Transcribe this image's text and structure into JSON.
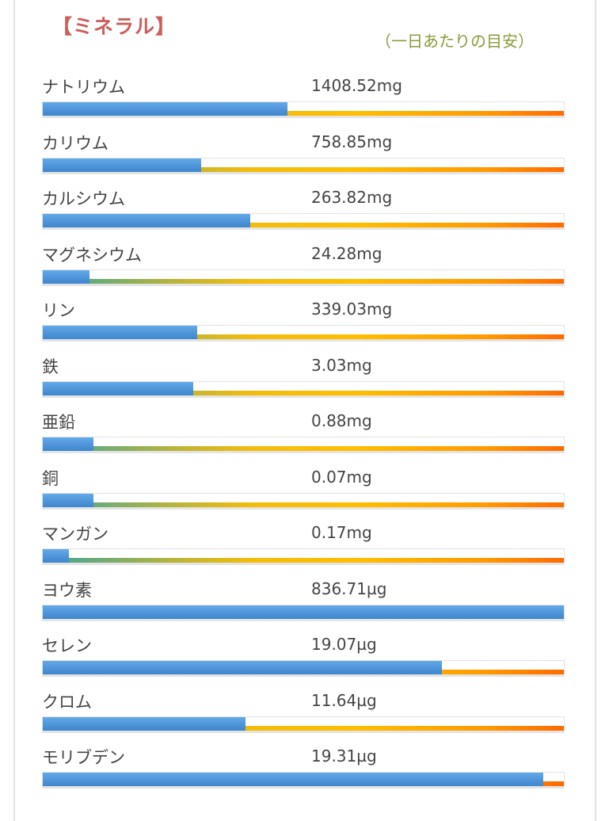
{
  "header": {
    "title": "【ミネラル】",
    "subtitle": "（一日あたりの目安）"
  },
  "colors": {
    "title": "#c9605c",
    "subtitle": "#8a9a3c",
    "bar_fill": "#4f94d8",
    "gradient_start": "#3aa39a",
    "gradient_mid": "#ffbe00",
    "gradient_end": "#ff6a00"
  },
  "rows": [
    {
      "name": "ナトリウム",
      "value": "1408.52mg",
      "percent": 46.9
    },
    {
      "name": "カリウム",
      "value": "758.85mg",
      "percent": 30.4
    },
    {
      "name": "カルシウム",
      "value": "263.82mg",
      "percent": 39.8
    },
    {
      "name": "マグネシウム",
      "value": "24.28mg",
      "percent": 8.9
    },
    {
      "name": "リン",
      "value": "339.03mg",
      "percent": 29.7
    },
    {
      "name": "鉄",
      "value": "3.03mg",
      "percent": 28.9
    },
    {
      "name": "亜鉛",
      "value": "0.88mg",
      "percent": 9.8
    },
    {
      "name": "銅",
      "value": "0.07mg",
      "percent": 9.7
    },
    {
      "name": "マンガン",
      "value": "0.17mg",
      "percent": 5.0
    },
    {
      "name": "ヨウ素",
      "value": "836.71µg",
      "percent": 100
    },
    {
      "name": "セレン",
      "value": "19.07µg",
      "percent": 76.6
    },
    {
      "name": "クロム",
      "value": "11.64µg",
      "percent": 38.9
    },
    {
      "name": "モリブデン",
      "value": "19.31µg",
      "percent": 96.1
    }
  ],
  "chart_data": {
    "type": "bar",
    "title": "【ミネラル】",
    "subtitle": "（一日あたりの目安）",
    "orientation": "horizontal",
    "categories": [
      "ナトリウム",
      "カリウム",
      "カルシウム",
      "マグネシウム",
      "リン",
      "鉄",
      "亜鉛",
      "銅",
      "マンガン",
      "ヨウ素",
      "セレン",
      "クロム",
      "モリブデン"
    ],
    "value_labels": [
      "1408.52mg",
      "758.85mg",
      "263.82mg",
      "24.28mg",
      "339.03mg",
      "3.03mg",
      "0.88mg",
      "0.07mg",
      "0.17mg",
      "836.71µg",
      "19.07µg",
      "11.64µg",
      "19.31µg"
    ],
    "values": [
      1408.52,
      758.85,
      263.82,
      24.28,
      339.03,
      3.03,
      0.88,
      0.07,
      0.17,
      836.71,
      19.07,
      11.64,
      19.31
    ],
    "units": [
      "mg",
      "mg",
      "mg",
      "mg",
      "mg",
      "mg",
      "mg",
      "mg",
      "mg",
      "µg",
      "µg",
      "µg",
      "µg"
    ],
    "percent_of_target": [
      46.9,
      30.4,
      39.8,
      8.9,
      29.7,
      28.9,
      9.8,
      9.7,
      5.0,
      100,
      76.6,
      38.9,
      96.1
    ],
    "xlim": [
      0,
      100
    ],
    "xlabel": "",
    "ylabel": "",
    "grid": false,
    "legend": null
  }
}
